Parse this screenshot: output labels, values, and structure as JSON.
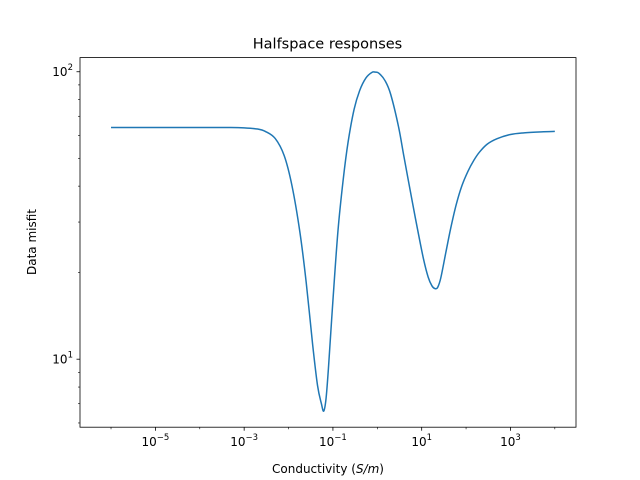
{
  "chart_data": {
    "type": "line",
    "title": "Halfspace responses",
    "xlabel_prefix": "Conductivity (",
    "xlabel_unit": "S/m",
    "xlabel_suffix": ")",
    "ylabel": "Data misfit",
    "x_scale": "log",
    "y_scale": "log",
    "xlim": [
      2e-07,
      30000
    ],
    "ylim": [
      5.8,
      112
    ],
    "grid": false,
    "x_ticks": [
      {
        "value": 1e-05,
        "base": "10",
        "exp": "−5"
      },
      {
        "value": 0.001,
        "base": "10",
        "exp": "−3"
      },
      {
        "value": 0.1,
        "base": "10",
        "exp": "−1"
      },
      {
        "value": 10,
        "base": "10",
        "exp": "1"
      },
      {
        "value": 1000,
        "base": "10",
        "exp": "3"
      }
    ],
    "y_ticks": [
      {
        "value": 10,
        "base": "10",
        "exp": "1"
      },
      {
        "value": 100,
        "base": "10",
        "exp": "2"
      }
    ],
    "series": [
      {
        "color": "#1f77b4",
        "x": [
          1e-06,
          1e-05,
          0.0001,
          0.0005,
          0.001,
          0.002,
          0.003,
          0.005,
          0.008,
          0.012,
          0.018,
          0.025,
          0.035,
          0.045,
          0.055,
          0.062,
          0.07,
          0.08,
          0.1,
          0.13,
          0.17,
          0.22,
          0.3,
          0.4,
          0.55,
          0.75,
          0.9,
          1.1,
          1.5,
          2,
          3,
          4,
          6,
          8,
          11,
          14,
          17,
          20,
          23,
          27,
          35,
          45,
          60,
          80,
          110,
          150,
          200,
          300,
          500,
          1000,
          2000,
          5000,
          10000
        ],
        "y": [
          64,
          64,
          64,
          64,
          63.8,
          63.2,
          62,
          58.6,
          51,
          40,
          27.7,
          18.5,
          11.2,
          8.1,
          7,
          6.6,
          7.3,
          9.5,
          16,
          28,
          42,
          57,
          74,
          86,
          95,
          99.4,
          99.7,
          98.7,
          93,
          83.5,
          64.5,
          50.5,
          36,
          28.5,
          22.3,
          19.3,
          18,
          17.6,
          17.8,
          19.2,
          23.5,
          28.5,
          34.5,
          40,
          45,
          49.2,
          52.5,
          56,
          58.5,
          60.5,
          61.3,
          61.8,
          62
        ]
      }
    ]
  }
}
